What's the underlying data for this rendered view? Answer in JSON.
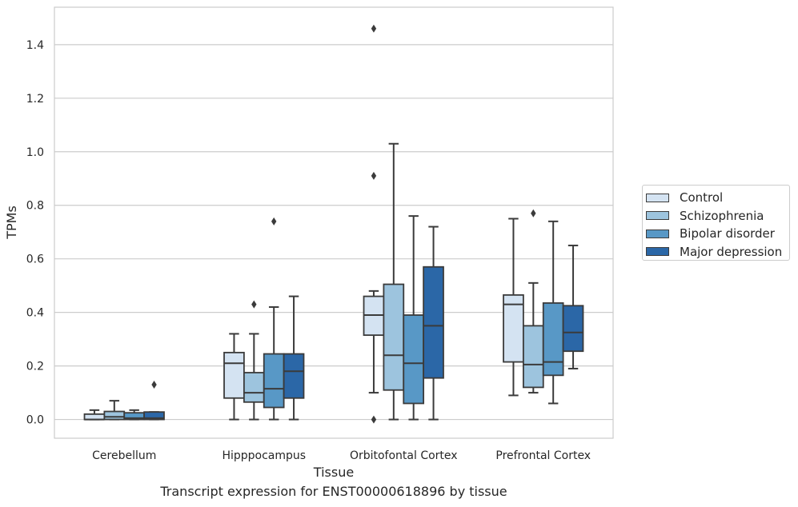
{
  "chart_data": {
    "type": "box",
    "title": "",
    "xlabel": "Tissue",
    "ylabel": "TPMs",
    "ylim": [
      -0.07,
      1.54
    ],
    "yticks": [
      0.0,
      0.2,
      0.4,
      0.6,
      0.8,
      1.0,
      1.2,
      1.4
    ],
    "ytick_labels": [
      "0.0",
      "0.2",
      "0.4",
      "0.6",
      "0.8",
      "1.0",
      "1.2",
      "1.4"
    ],
    "grid": "horizontal",
    "legend_position": "right",
    "categories": [
      "Cerebellum",
      "Hipppocampus",
      "Orbitofontal Cortex",
      "Prefrontal Cortex"
    ],
    "series": [
      {
        "name": "Control",
        "color": "#d4e3f2",
        "boxes": [
          {
            "whislo": 0.0,
            "q1": 0.0,
            "med": 0.0,
            "q3": 0.02,
            "whishi": 0.035,
            "fliers": []
          },
          {
            "whislo": 0.0,
            "q1": 0.08,
            "med": 0.21,
            "q3": 0.25,
            "whishi": 0.32,
            "fliers": []
          },
          {
            "whislo": 0.1,
            "q1": 0.315,
            "med": 0.39,
            "q3": 0.46,
            "whishi": 0.48,
            "fliers": [
              0.0,
              0.91,
              1.46
            ]
          },
          {
            "whislo": 0.09,
            "q1": 0.215,
            "med": 0.43,
            "q3": 0.465,
            "whishi": 0.75,
            "fliers": []
          }
        ]
      },
      {
        "name": "Schizophrenia",
        "color": "#9dc4de",
        "boxes": [
          {
            "whislo": 0.0,
            "q1": 0.0,
            "med": 0.01,
            "q3": 0.03,
            "whishi": 0.07,
            "fliers": []
          },
          {
            "whislo": 0.0,
            "q1": 0.065,
            "med": 0.1,
            "q3": 0.175,
            "whishi": 0.32,
            "fliers": [
              0.43
            ]
          },
          {
            "whislo": 0.0,
            "q1": 0.11,
            "med": 0.24,
            "q3": 0.505,
            "whishi": 1.03,
            "fliers": []
          },
          {
            "whislo": 0.1,
            "q1": 0.12,
            "med": 0.205,
            "q3": 0.35,
            "whishi": 0.51,
            "fliers": [
              0.77
            ]
          }
        ]
      },
      {
        "name": "Bipolar disorder",
        "color": "#5898c6",
        "boxes": [
          {
            "whislo": 0.0,
            "q1": 0.0,
            "med": 0.005,
            "q3": 0.025,
            "whishi": 0.035,
            "fliers": []
          },
          {
            "whislo": 0.0,
            "q1": 0.045,
            "med": 0.115,
            "q3": 0.245,
            "whishi": 0.42,
            "fliers": [
              0.74
            ]
          },
          {
            "whislo": 0.0,
            "q1": 0.06,
            "med": 0.21,
            "q3": 0.39,
            "whishi": 0.76,
            "fliers": []
          },
          {
            "whislo": 0.06,
            "q1": 0.165,
            "med": 0.215,
            "q3": 0.435,
            "whishi": 0.74,
            "fliers": []
          }
        ]
      },
      {
        "name": "Major depression",
        "color": "#2b67a7",
        "boxes": [
          {
            "whislo": 0.0,
            "q1": 0.0,
            "med": 0.005,
            "q3": 0.028,
            "whishi": 0.028,
            "fliers": [
              0.13
            ]
          },
          {
            "whislo": 0.0,
            "q1": 0.08,
            "med": 0.18,
            "q3": 0.245,
            "whishi": 0.46,
            "fliers": []
          },
          {
            "whislo": 0.0,
            "q1": 0.155,
            "med": 0.35,
            "q3": 0.57,
            "whishi": 0.72,
            "fliers": []
          },
          {
            "whislo": 0.19,
            "q1": 0.255,
            "med": 0.325,
            "q3": 0.425,
            "whishi": 0.65,
            "fliers": []
          }
        ]
      }
    ],
    "caption": "Transcript expression for ENST00000618896 by tissue"
  }
}
